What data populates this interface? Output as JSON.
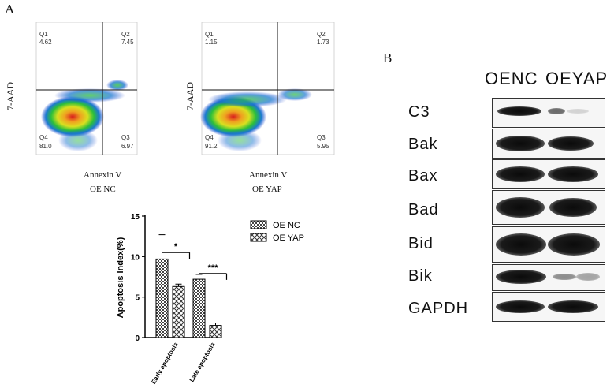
{
  "panel_a": {
    "label": "A",
    "plots": [
      {
        "name": "OE NC",
        "xlabel": "Annexin V",
        "ylabel": "7-AAD",
        "caption": "OE NC",
        "quadrants": {
          "q1_label": "Q1",
          "q1_value": "4.62",
          "q2_label": "Q2",
          "q2_value": "7.45",
          "q3_label": "Q3",
          "q3_value": "6.97",
          "q4_label": "Q4",
          "q4_value": "81.0"
        }
      },
      {
        "name": "OE YAP",
        "xlabel": "Annexin V",
        "ylabel": "7-AAD",
        "caption": "OE YAP",
        "quadrants": {
          "q1_label": "Q1",
          "q1_value": "1.15",
          "q2_label": "Q2",
          "q2_value": "1.73",
          "q3_label": "Q3",
          "q3_value": "5.95",
          "q4_label": "Q4",
          "q4_value": "91.2"
        }
      }
    ]
  },
  "chart_data": {
    "type": "bar",
    "title": "",
    "xlabel": "",
    "ylabel": "Apoptosis Index(%)",
    "ylim": [
      0,
      15
    ],
    "yticks": [
      "0",
      "5",
      "10",
      "15"
    ],
    "categories": [
      "Early apoptosis",
      "Late apoptosis"
    ],
    "series": [
      {
        "name": "OE NC",
        "values": [
          9.7,
          7.2
        ],
        "errors": [
          3.0,
          0.6
        ]
      },
      {
        "name": "OE YAP",
        "values": [
          6.3,
          1.5
        ],
        "errors": [
          0.3,
          0.3
        ]
      }
    ],
    "significance": [
      "*",
      "***"
    ],
    "legend_position": "right"
  },
  "panel_b": {
    "label": "B",
    "col_headers": [
      "OENC",
      "OEYAP"
    ],
    "rows": [
      "C3",
      "Bak",
      "Bax",
      "Bad",
      "Bid",
      "Bik",
      "GAPDH"
    ]
  }
}
